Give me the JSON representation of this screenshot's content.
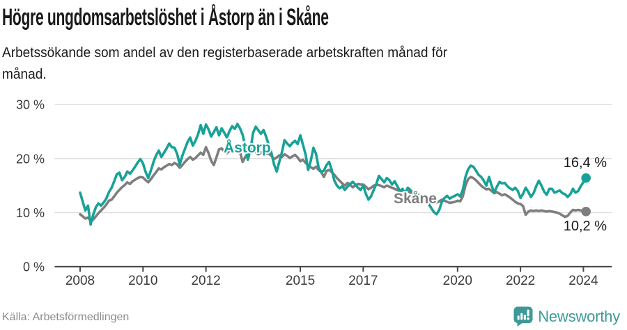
{
  "header": {
    "title": "Högre ungdomsarbetslöshet i Åstorp än i Skåne",
    "subtitle": "Arbetssökande som andel av den registerbaserade arbetskraften månad för månad."
  },
  "footer": {
    "source": "Källa: Arbetsförmedlingen",
    "brand": "Newsworthy",
    "brand_icon": "bar-chart-speech-bubble-icon"
  },
  "colors": {
    "astorp_line": "#18a297",
    "skane_line": "#7e7e7e",
    "grid": "#dcdcdc",
    "axis": "#4a4a4a",
    "tick_text": "#3b3b3b",
    "value_text": "#1a1a1a",
    "muted_text": "#8c8c8c",
    "brand_teal": "#3d9998",
    "background": "#ffffff"
  },
  "chart_data": {
    "type": "line",
    "title": "Högre ungdomsarbetslöshet i Åstorp än i Skåne",
    "subtitle": "Arbetssökande som andel av den registerbaserade arbetskraften månad för månad.",
    "unit": "%",
    "frequency": "monthly",
    "x_start": "2008-01",
    "x_end": "2024-02",
    "x_tick_years": [
      2008,
      2010,
      2012,
      2015,
      2017,
      2020,
      2022,
      2024
    ],
    "y_ticks": [
      0,
      10,
      20,
      30
    ],
    "y_tick_format": "{v} %",
    "ylim": [
      0,
      30
    ],
    "grid": "horizontal",
    "legend_position": "inline-labels",
    "series": [
      {
        "name": "Åstorp",
        "color": "#18a297",
        "end_label": "16,4 %",
        "end_value": 16.4,
        "values": [
          13.7,
          12.0,
          10.4,
          11.3,
          7.8,
          9.6,
          11.0,
          11.7,
          11.3,
          11.9,
          12.6,
          13.8,
          14.6,
          15.8,
          17.1,
          17.4,
          16.0,
          16.6,
          17.6,
          17.2,
          17.8,
          18.5,
          19.3,
          19.9,
          19.1,
          17.5,
          16.4,
          17.8,
          19.4,
          20.6,
          21.5,
          20.3,
          21.1,
          21.9,
          22.8,
          22.1,
          22.0,
          20.9,
          18.9,
          20.5,
          21.8,
          23.1,
          23.9,
          22.4,
          23.3,
          24.5,
          26.2,
          24.6,
          26.3,
          25.4,
          24.1,
          24.9,
          25.8,
          24.3,
          25.6,
          24.8,
          23.9,
          25.1,
          26.0,
          25.5,
          26.4,
          25.6,
          24.4,
          22.3,
          19.8,
          21.7,
          24.8,
          25.9,
          25.2,
          24.6,
          25.3,
          24.0,
          22.5,
          21.0,
          18.9,
          17.6,
          19.4,
          21.2,
          23.4,
          22.8,
          22.3,
          22.9,
          23.3,
          22.7,
          24.3,
          22.6,
          20.8,
          17.9,
          19.6,
          22.0,
          20.9,
          18.3,
          17.5,
          17.8,
          18.8,
          19.4,
          17.9,
          15.9,
          15.0,
          14.5,
          14.9,
          14.2,
          14.8,
          15.3,
          15.7,
          15.2,
          14.6,
          14.2,
          15.0,
          13.5,
          12.4,
          13.0,
          14.2,
          15.3,
          16.8,
          16.2,
          15.6,
          16.4,
          16.0,
          15.2,
          15.8,
          14.9,
          14.0,
          14.4,
          13.6,
          14.6,
          14.2,
          13.4,
          13.0,
          13.3,
          12.8,
          12.2,
          12.5,
          11.6,
          10.8,
          10.1,
          9.7,
          10.5,
          12.0,
          12.7,
          13.1,
          12.6,
          12.9,
          13.1,
          13.4,
          13.0,
          14.2,
          16.6,
          18.0,
          18.7,
          18.5,
          17.8,
          17.0,
          16.6,
          15.9,
          15.0,
          16.6,
          15.0,
          13.7,
          14.8,
          15.7,
          15.4,
          15.5,
          14.9,
          14.5,
          14.2,
          14.6,
          14.0,
          12.7,
          13.5,
          14.6,
          13.8,
          12.9,
          13.6,
          14.9,
          15.9,
          15.0,
          13.9,
          13.3,
          14.4,
          14.4,
          13.7,
          13.9,
          14.1,
          13.6,
          13.4,
          12.9,
          13.4,
          14.4,
          13.7,
          14.0,
          14.9,
          15.6,
          16.4
        ]
      },
      {
        "name": "Skåne",
        "color": "#7e7e7e",
        "end_label": "10,2 %",
        "end_value": 10.2,
        "values": [
          9.7,
          9.3,
          8.9,
          9.1,
          8.5,
          8.7,
          9.3,
          9.9,
          10.4,
          10.9,
          11.5,
          12.2,
          12.4,
          13.0,
          13.7,
          14.2,
          14.7,
          15.1,
          15.6,
          15.3,
          15.8,
          16.1,
          16.4,
          16.6,
          16.5,
          16.0,
          15.6,
          16.2,
          16.9,
          17.5,
          18.2,
          18.0,
          18.4,
          18.7,
          19.0,
          18.8,
          19.2,
          18.9,
          18.3,
          18.8,
          19.4,
          19.9,
          20.3,
          19.8,
          20.1,
          20.6,
          21.1,
          20.7,
          22.1,
          21.0,
          19.6,
          18.8,
          20.2,
          21.7,
          21.9,
          21.3,
          21.0,
          21.5,
          22.0,
          21.8,
          22.3,
          21.2,
          19.4,
          20.3,
          20.9,
          21.4,
          21.7,
          21.2,
          20.8,
          21.1,
          21.4,
          21.0,
          20.9,
          20.5,
          19.9,
          20.2,
          20.6,
          20.3,
          20.8,
          20.5,
          20.1,
          20.4,
          20.7,
          20.2,
          19.5,
          19.8,
          19.2,
          18.8,
          18.4,
          18.1,
          18.5,
          17.9,
          17.5,
          16.6,
          17.7,
          17.9,
          17.5,
          17.0,
          16.4,
          15.9,
          15.4,
          15.0,
          15.5,
          15.1,
          14.7,
          15.0,
          15.3,
          15.2,
          15.2,
          14.8,
          14.3,
          14.6,
          15.0,
          15.2,
          15.1,
          14.9,
          14.7,
          15.0,
          14.8,
          14.6,
          14.4,
          14.2,
          13.9,
          14.1,
          13.8,
          14.0,
          13.7,
          13.5,
          13.3,
          13.4,
          13.1,
          12.9,
          12.7,
          12.5,
          12.2,
          12.0,
          11.9,
          12.1,
          12.4,
          12.2,
          12.0,
          11.8,
          11.9,
          12.0,
          12.2,
          12.1,
          13.0,
          15.0,
          16.2,
          16.6,
          16.4,
          16.0,
          15.5,
          15.0,
          14.6,
          14.3,
          14.4,
          14.0,
          13.6,
          13.8,
          13.5,
          13.2,
          13.4,
          13.1,
          12.8,
          12.4,
          12.0,
          11.7,
          11.6,
          11.2,
          9.6,
          10.2,
          10.4,
          10.3,
          10.4,
          10.3,
          10.4,
          10.3,
          10.2,
          10.3,
          10.2,
          10.1,
          10.0,
          9.8,
          9.5,
          9.2,
          9.4,
          10.0,
          10.5,
          10.4,
          10.5,
          10.4,
          10.4,
          10.2
        ]
      }
    ]
  }
}
